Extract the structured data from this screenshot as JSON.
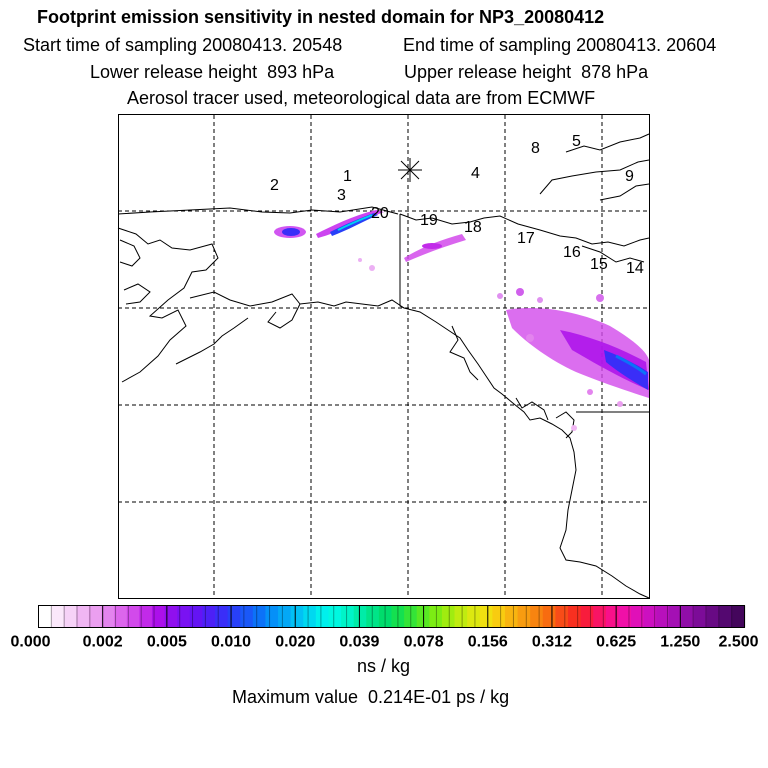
{
  "title": "Footprint emission sensitivity in nested domain for NP3_20080412",
  "start_time": "Start time of sampling 20080413. 20548",
  "end_time": "End time of sampling 20080413. 20604",
  "lower_height": "Lower release height  893 hPa",
  "upper_height": "Upper release height  878 hPa",
  "tracer_note": "Aerosol tracer used, meteorological data are from ECMWF",
  "point_labels": [
    "1",
    "2",
    "3",
    "4",
    "5",
    "8",
    "9",
    "14",
    "15",
    "16",
    "17",
    "18",
    "19",
    "20"
  ],
  "colorbar": {
    "tick_labels": [
      "0.000",
      "0.002",
      "0.005",
      "0.010",
      "0.020",
      "0.039",
      "0.078",
      "0.156",
      "0.312",
      "0.625",
      "1.250",
      "2.500"
    ],
    "unit": "ns / kg",
    "colors": [
      "#ffffff",
      "#fbe8fb",
      "#f6d2f7",
      "#f0b6f3",
      "#eb9ff0",
      "#e384ee",
      "#dc66ec",
      "#d24aeb",
      "#c22ae9",
      "#ac10ea",
      "#9010ee",
      "#7a12f2",
      "#6414f4",
      "#4d20f6",
      "#3a2ef8",
      "#2840f8",
      "#1a58f8",
      "#0c72f8",
      "#0590f8",
      "#04a8f6",
      "#02c0f4",
      "#00d8f0",
      "#00f0ec",
      "#00f8e0",
      "#00f4c8",
      "#00eca8",
      "#00e488",
      "#00dc6c",
      "#14e050",
      "#34e438",
      "#58e824",
      "#7cec14",
      "#a0ec10",
      "#c0ec10",
      "#dce810",
      "#f0e010",
      "#f8cc10",
      "#f8b410",
      "#f89c10",
      "#f88410",
      "#f86c10",
      "#f84c18",
      "#f83020",
      "#f81c3c",
      "#f81464",
      "#f8108a",
      "#f010a8",
      "#e010b8",
      "#cc10c0",
      "#b810bc",
      "#a410b4",
      "#900ea8",
      "#7c0c98",
      "#680a84",
      "#540870",
      "#44065c"
    ]
  },
  "maximum_value": "Maximum value  0.214E-01 ps / kg"
}
